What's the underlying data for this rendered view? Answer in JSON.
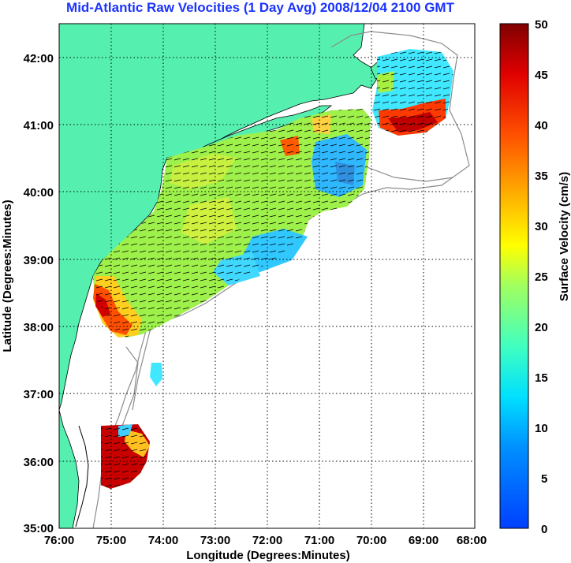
{
  "title": "Mid-Atlantic Raw Velocities (1 Day Avg) 2008/12/04 2100 GMT",
  "axes": {
    "xlabel": "Longitude (Degrees:Minutes)",
    "ylabel": "Latitude (Degrees:Minutes)",
    "xticks": [
      "76:00",
      "75:00",
      "74:00",
      "73:00",
      "72:00",
      "71:00",
      "70:00",
      "69:00",
      "68:00"
    ],
    "yticks": [
      "42:00",
      "41:00",
      "40:00",
      "39:00",
      "38:00",
      "37:00",
      "36:00",
      "35:00"
    ]
  },
  "colorbar": {
    "label": "Surface Velocity (cm/s)",
    "ticks": [
      "50",
      "45",
      "40",
      "35",
      "30",
      "25",
      "20",
      "15",
      "10",
      "5",
      "0"
    ],
    "min": 0,
    "max": 50
  },
  "colors": {
    "land": "#55f0b0",
    "title": "#1a33ff",
    "grid": "#000000",
    "bathymetry": "#8c8c8c"
  }
}
